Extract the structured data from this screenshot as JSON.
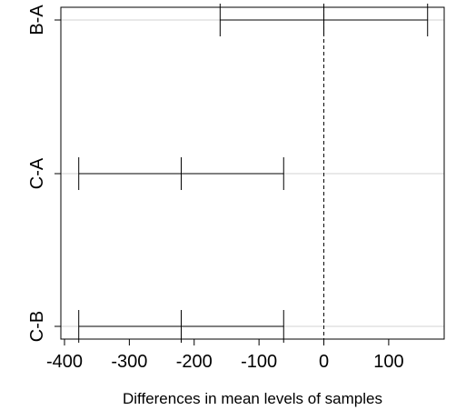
{
  "chart_data": {
    "type": "errorbar",
    "title": "",
    "xlabel": "Differences in mean levels of samples",
    "ylabel": "",
    "xlim": [
      -400,
      180
    ],
    "xticks": [
      -400,
      -300,
      -200,
      -100,
      0,
      100
    ],
    "xtick_labels": [
      "-400",
      "-300",
      "-200",
      "-100",
      "0",
      "100"
    ],
    "reference_line": 0,
    "grid": "horizontal at each comparison",
    "comparisons": [
      {
        "label": "B-A",
        "lower": -160,
        "estimate": 0,
        "upper": 160
      },
      {
        "label": "C-A",
        "lower": -378,
        "estimate": -220,
        "upper": -62
      },
      {
        "label": "C-B",
        "lower": -378,
        "estimate": -220,
        "upper": -62
      }
    ],
    "colors": {
      "interval": "#000000",
      "grid": "#d3d3d3",
      "axis": "#000000",
      "reference": "#000000"
    }
  }
}
